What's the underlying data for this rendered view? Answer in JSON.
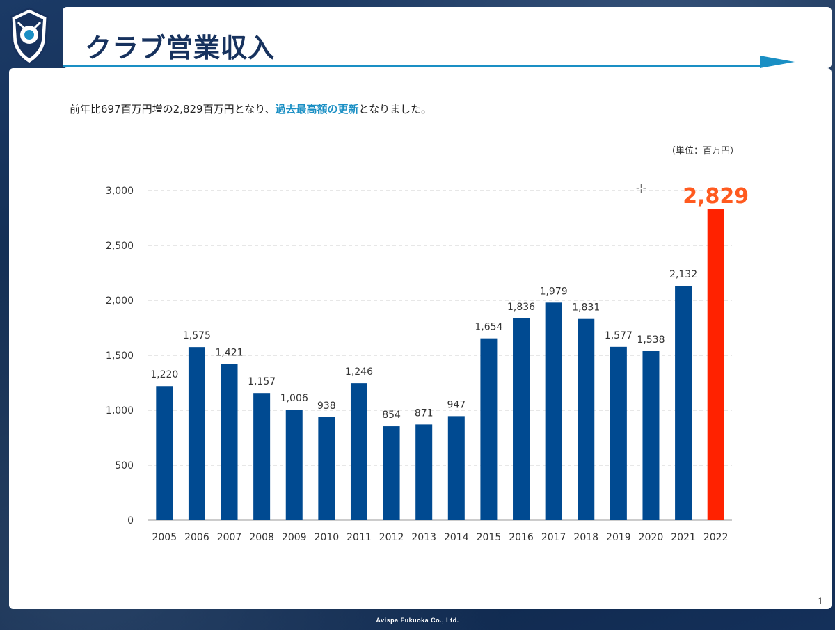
{
  "slide": {
    "title": "クラブ営業収入",
    "summary_pre": "前年比697百万円増の2,829百万円となり、",
    "summary_highlight": "過去最高額の更新",
    "summary_post": "となりました。",
    "unit": "（単位：百万円）",
    "footer": "Avispa Fukuoka Co., Ltd.",
    "page_number": "1",
    "colors": {
      "navy": "#17325e",
      "accent": "#1a8fc4",
      "bar": "#004a91",
      "highlight_bar": "#ff2200",
      "highlight_label": "#ff5a1f"
    }
  },
  "chart_data": {
    "type": "bar",
    "categories": [
      "2005",
      "2006",
      "2007",
      "2008",
      "2009",
      "2010",
      "2011",
      "2012",
      "2013",
      "2014",
      "2015",
      "2016",
      "2017",
      "2018",
      "2019",
      "2020",
      "2021",
      "2022"
    ],
    "values": [
      1220,
      1575,
      1421,
      1157,
      1006,
      938,
      1246,
      854,
      871,
      947,
      1654,
      1836,
      1979,
      1831,
      1577,
      1538,
      2132,
      2829
    ],
    "data_labels": [
      "1,220",
      "1,575",
      "1,421",
      "1,157",
      "1,006",
      "938",
      "1,246",
      "854",
      "871",
      "947",
      "1,654",
      "1,836",
      "1,979",
      "1,831",
      "1,577",
      "1,538",
      "2,132",
      "2,829"
    ],
    "highlight_index": 17,
    "ylim": [
      0,
      3000
    ],
    "yticks": [
      0,
      500,
      1000,
      1500,
      2000,
      2500,
      3000
    ],
    "ytick_labels": [
      "0",
      "500",
      "1,000",
      "1,500",
      "2,000",
      "2,500",
      "3,000"
    ],
    "grid": true,
    "grid_style": "dashed"
  }
}
